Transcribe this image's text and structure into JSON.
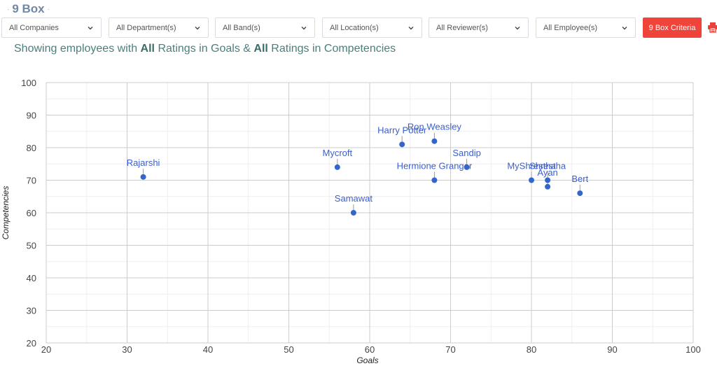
{
  "header": {
    "title": "9 Box"
  },
  "filters": [
    {
      "label": "All Companies"
    },
    {
      "label": "All Department(s)"
    },
    {
      "label": "All Band(s)"
    },
    {
      "label": "All Location(s)"
    },
    {
      "label": "All Reviewer(s)"
    },
    {
      "label": "All Employee(s)"
    }
  ],
  "criteria_button": {
    "label": "9 Box Criteria"
  },
  "subtitle": {
    "prefix": "Showing employees with ",
    "goals_filter": "All",
    "middle": " Ratings in Goals & ",
    "competencies_filter": "All",
    "suffix": " Ratings in Competencies"
  },
  "colors": {
    "point": "#3366cc",
    "label": "#3b5fcf",
    "button": "#f0433a",
    "print_icon": "#e8423b",
    "title": "#6f88a5",
    "subtitle": "#4a7f7c"
  },
  "icons": {
    "chevron": "chevron-down-icon",
    "print": "print-icon"
  },
  "chart_data": {
    "type": "scatter",
    "xlabel": "Goals",
    "ylabel": "Competencies",
    "xlim": [
      20,
      100
    ],
    "ylim": [
      20,
      100
    ],
    "xticks": [
      20,
      30,
      40,
      50,
      60,
      70,
      80,
      90,
      100
    ],
    "yticks": [
      20,
      30,
      40,
      50,
      60,
      70,
      80,
      90,
      100
    ],
    "grid": true,
    "points": [
      {
        "name": "Rajarshi",
        "x": 32,
        "y": 71
      },
      {
        "name": "Mycroft",
        "x": 56,
        "y": 74
      },
      {
        "name": "Samawat",
        "x": 58,
        "y": 60
      },
      {
        "name": "Harry Potter",
        "x": 64,
        "y": 81
      },
      {
        "name": "Ron Weasley",
        "x": 68,
        "y": 82
      },
      {
        "name": "Hermione Granger",
        "x": 68,
        "y": 70
      },
      {
        "name": "Sandip",
        "x": 72,
        "y": 74
      },
      {
        "name": "MyShrestha",
        "x": 80,
        "y": 70
      },
      {
        "name": "Ayan",
        "x": 82,
        "y": 68
      },
      {
        "name": "Shrestha",
        "x": 82,
        "y": 70
      },
      {
        "name": "Bert",
        "x": 86,
        "y": 66
      }
    ]
  }
}
